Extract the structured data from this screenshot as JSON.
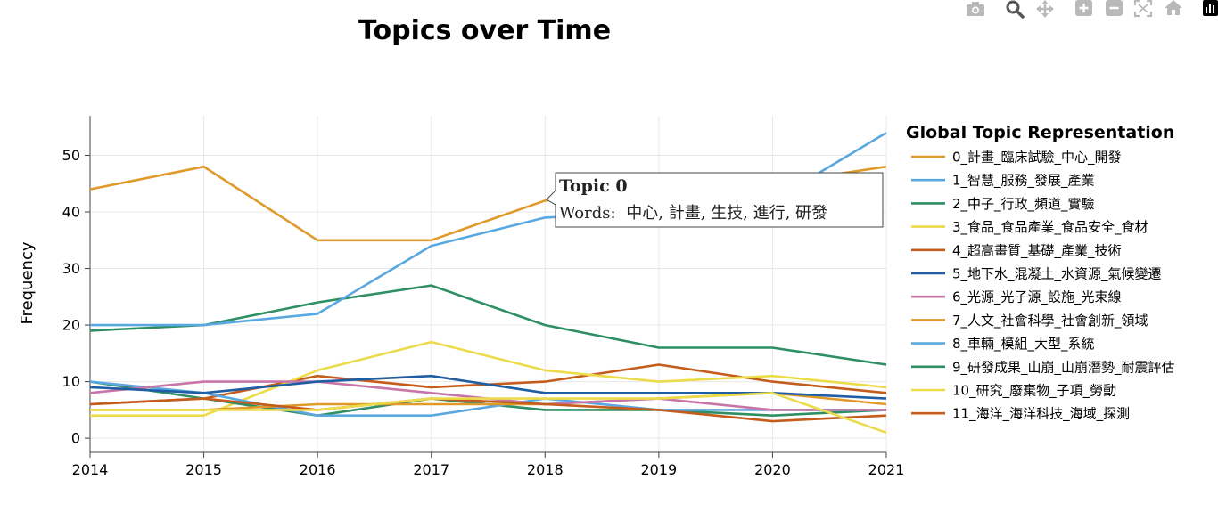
{
  "chart_data": {
    "type": "line",
    "title": "Topics over Time",
    "xlabel": "",
    "ylabel": "Frequency",
    "x": [
      2014,
      2015,
      2016,
      2017,
      2018,
      2019,
      2020,
      2021
    ],
    "xlim": [
      2014,
      2021
    ],
    "ylim": [
      -2.5,
      57
    ],
    "yticks": [
      0,
      10,
      20,
      30,
      40,
      50
    ],
    "grid": true,
    "legend_title": "Global Topic Representation",
    "legend_position": "right",
    "series": [
      {
        "name": "0_計畫_臨床試驗_中心_開發",
        "color": "#e09a2a",
        "values": [
          44,
          48,
          35,
          35,
          42,
          44,
          45,
          48
        ]
      },
      {
        "name": "1_智慧_服務_發展_產業",
        "color": "#5ba8e0",
        "values": [
          20,
          20,
          22,
          34,
          39,
          40,
          42,
          54
        ]
      },
      {
        "name": "2_中子_行政_頻道_實驗",
        "color": "#2e8f64",
        "values": [
          19,
          20,
          24,
          27,
          20,
          16,
          16,
          13
        ]
      },
      {
        "name": "3_食品_食品產業_食品安全_食材",
        "color": "#ecdc4a",
        "values": [
          5,
          5,
          5,
          7,
          7,
          7,
          8,
          1
        ]
      },
      {
        "name": "4_超高畫質_基礎_產業_技術",
        "color": "#c45c1c",
        "values": [
          6,
          7,
          5,
          7,
          6,
          5,
          3,
          4
        ]
      },
      {
        "name": "5_地下水_混凝土_水資源_氣候變遷",
        "color": "#1f5ea3",
        "values": [
          9,
          8,
          10,
          11,
          8,
          8,
          8,
          7
        ]
      },
      {
        "name": "6_光源_光子源_設施_光束線",
        "color": "#c875a8",
        "values": [
          8,
          10,
          10,
          8,
          6,
          7,
          5,
          5
        ]
      },
      {
        "name": "7_人文_社會科學_社會創新_領域",
        "color": "#e09a2a",
        "values": [
          5,
          5,
          6,
          6,
          6,
          7,
          8,
          6
        ]
      },
      {
        "name": "8_車輛_模組_大型_系統",
        "color": "#5ba8e0",
        "values": [
          10,
          8,
          4,
          4,
          7,
          5,
          5,
          5
        ]
      },
      {
        "name": "9_研發成果_山崩_山崩潛勢_耐震評估",
        "color": "#2e8f64",
        "values": [
          10,
          7,
          4,
          7,
          5,
          5,
          4,
          5
        ]
      },
      {
        "name": "10_研究_廢棄物_子項_勞動",
        "color": "#ecdc4a",
        "values": [
          4,
          4,
          12,
          17,
          12,
          10,
          11,
          9
        ]
      },
      {
        "name": "11_海洋_海洋科技_海域_探測",
        "color": "#c45c1c",
        "values": [
          6,
          7,
          11,
          9,
          10,
          13,
          10,
          8
        ]
      }
    ]
  },
  "hover": {
    "title": "Topic 0",
    "words_label": "Words:",
    "words": "中心, 計畫, 生技, 進行, 研發",
    "series_index": 0,
    "x": 2018
  },
  "modebar": {
    "icons": [
      "camera-icon",
      "zoom-icon",
      "pan-icon",
      "zoom-in-icon",
      "zoom-out-icon",
      "autoscale-icon",
      "home-icon",
      "plotly-logo-icon"
    ]
  }
}
